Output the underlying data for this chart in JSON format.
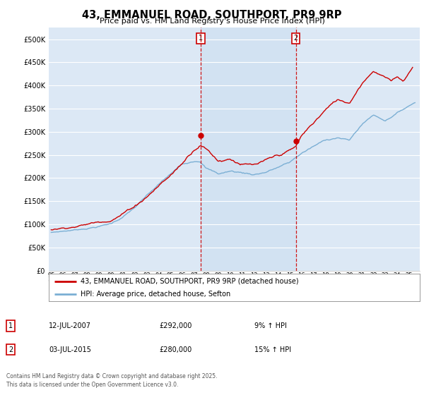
{
  "title": "43, EMMANUEL ROAD, SOUTHPORT, PR9 9RP",
  "subtitle": "Price paid vs. HM Land Registry's House Price Index (HPI)",
  "background_color": "#ffffff",
  "plot_bg_color": "#dce8f5",
  "grid_color": "#ffffff",
  "red_color": "#cc0000",
  "blue_color": "#7bafd4",
  "marker1_x": 2007.54,
  "marker2_x": 2015.51,
  "marker1_y": 292000,
  "marker2_y": 280000,
  "ylim": [
    0,
    525000
  ],
  "yticks": [
    0,
    50000,
    100000,
    150000,
    200000,
    250000,
    300000,
    350000,
    400000,
    450000,
    500000
  ],
  "xlim_start": 1994.8,
  "xlim_end": 2025.9,
  "legend_red_label": "43, EMMANUEL ROAD, SOUTHPORT, PR9 9RP (detached house)",
  "legend_blue_label": "HPI: Average price, detached house, Sefton",
  "annotation1": [
    "1",
    "12-JUL-2007",
    "£292,000",
    "9% ↑ HPI"
  ],
  "annotation2": [
    "2",
    "03-JUL-2015",
    "£280,000",
    "15% ↑ HPI"
  ],
  "footer": "Contains HM Land Registry data © Crown copyright and database right 2025.\nThis data is licensed under the Open Government Licence v3.0.",
  "hpi_knots_x": [
    1995,
    1996,
    1997,
    1998,
    1999,
    2000,
    2001,
    2002,
    2003,
    2004,
    2005,
    2006,
    2007,
    2007.5,
    2008,
    2009,
    2010,
    2011,
    2012,
    2013,
    2014,
    2015,
    2016,
    2017,
    2018,
    2019,
    2020,
    2021,
    2022,
    2023,
    2024,
    2025.5
  ],
  "hpi_knots_y": [
    82000,
    85000,
    88000,
    92000,
    97000,
    103000,
    118000,
    138000,
    162000,
    185000,
    207000,
    228000,
    238000,
    240000,
    225000,
    212000,
    218000,
    215000,
    212000,
    218000,
    228000,
    238000,
    258000,
    272000,
    285000,
    292000,
    285000,
    318000,
    340000,
    328000,
    345000,
    368000
  ],
  "price_knots_x": [
    1995,
    1996,
    1997,
    1998,
    1999,
    2000,
    2001,
    2002,
    2003,
    2004,
    2005,
    2006,
    2006.5,
    2007.0,
    2007.54,
    2008.2,
    2009,
    2010,
    2011,
    2012,
    2013,
    2014,
    2015.0,
    2015.51,
    2016,
    2017,
    2018,
    2019,
    2020,
    2021,
    2022,
    2023,
    2023.5,
    2024,
    2024.5,
    2025.3
  ],
  "price_knots_y": [
    88000,
    92000,
    97000,
    102000,
    108000,
    115000,
    130000,
    148000,
    170000,
    195000,
    218000,
    245000,
    262000,
    278000,
    292000,
    278000,
    258000,
    265000,
    255000,
    250000,
    255000,
    263000,
    273000,
    280000,
    303000,
    330000,
    358000,
    378000,
    372000,
    415000,
    445000,
    430000,
    420000,
    430000,
    420000,
    450000
  ]
}
